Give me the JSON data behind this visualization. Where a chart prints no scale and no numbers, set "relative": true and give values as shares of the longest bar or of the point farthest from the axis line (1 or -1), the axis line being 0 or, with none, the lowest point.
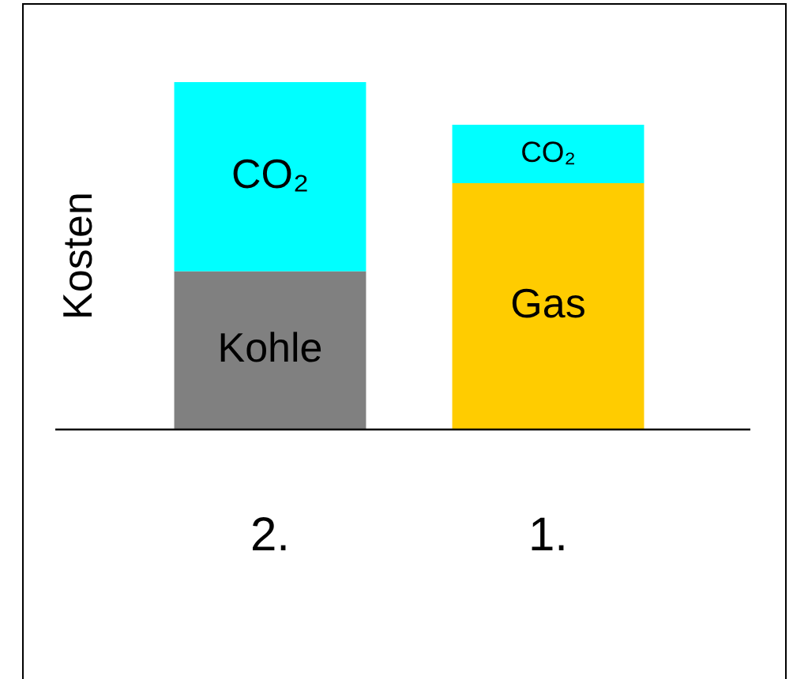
{
  "chart_data": {
    "type": "bar",
    "stacked": true,
    "relative": true,
    "ylabel": "Kosten",
    "categories": [
      "2.",
      "1."
    ],
    "series": [
      {
        "name": "Kohle",
        "color": "#808080",
        "values": [
          0.455,
          null
        ]
      },
      {
        "name": "Gas",
        "color": "#ffcc00",
        "values": [
          null,
          0.709
        ]
      },
      {
        "name": "CO₂",
        "color": "#00ffff",
        "values": [
          0.545,
          0.168
        ]
      }
    ],
    "legend": false,
    "grid": false
  }
}
